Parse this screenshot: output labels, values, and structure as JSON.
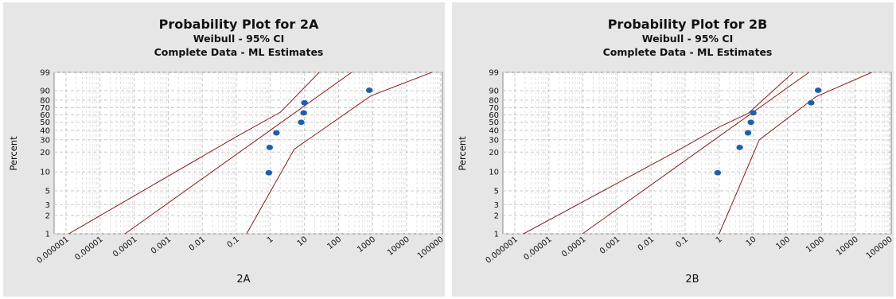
{
  "charts": [
    {
      "title": "Probability Plot for 2A",
      "subtitle1": "Weibull - 95% CI",
      "subtitle2": "Complete Data - ML Estimates",
      "ylabel": "Percent",
      "xlabel": "2A"
    },
    {
      "title": "Probability Plot for 2B",
      "subtitle1": "Weibull - 95% CI",
      "subtitle2": "Complete Data - ML Estimates",
      "ylabel": "Percent",
      "xlabel": "2B"
    }
  ],
  "colors": {
    "panel_bg": "#e6e6e6",
    "plot_bg": "#ffffff",
    "grid": "#c8c8c8",
    "fit_line": "#8b1a1a",
    "points": "#1f5fa8"
  },
  "chart_data": [
    {
      "type": "scatter",
      "title": "Probability Plot for 2A",
      "xlabel": "2A",
      "ylabel": "Percent",
      "x_scale": "log",
      "y_scale": "weibull-probability",
      "x_ticks": [
        "0.000001",
        "0.00001",
        "0.0001",
        "0.001",
        "0.01",
        "0.1",
        "1",
        "10",
        "100",
        "1000",
        "10000",
        "100000"
      ],
      "y_ticks": [
        1,
        2,
        3,
        5,
        10,
        20,
        30,
        40,
        50,
        60,
        70,
        80,
        90,
        99
      ],
      "points": [
        {
          "x": 0.9,
          "y": 9.7
        },
        {
          "x": 0.95,
          "y": 23.4
        },
        {
          "x": 1.5,
          "y": 37.1
        },
        {
          "x": 8,
          "y": 50
        },
        {
          "x": 9.5,
          "y": 62.9
        },
        {
          "x": 10,
          "y": 76.6
        },
        {
          "x": 800,
          "y": 90.3
        }
      ],
      "fit": {
        "scale": 5.3,
        "shape": 0.4
      },
      "ci_upper": [
        {
          "x": 1.2e-06,
          "y": 1
        },
        {
          "x": 0.1,
          "y": 33
        },
        {
          "x": 2,
          "y": 64
        },
        {
          "x": 27,
          "y": 99
        }
      ],
      "ci_lower": [
        {
          "x": 0.2,
          "y": 1
        },
        {
          "x": 5,
          "y": 22
        },
        {
          "x": 900,
          "y": 85
        },
        {
          "x": 55000,
          "y": 99
        }
      ],
      "grid": true
    },
    {
      "type": "scatter",
      "title": "Probability Plot for 2B",
      "xlabel": "2B",
      "ylabel": "Percent",
      "x_scale": "log",
      "y_scale": "weibull-probability",
      "x_ticks": [
        "0.000001",
        "0.00001",
        "0.0001",
        "0.001",
        "0.01",
        "0.1",
        "1",
        "10",
        "100",
        "1000",
        "10000",
        "100000"
      ],
      "y_ticks": [
        1,
        2,
        3,
        5,
        10,
        20,
        30,
        40,
        50,
        60,
        70,
        80,
        90,
        99
      ],
      "points": [
        {
          "x": 0.9,
          "y": 9.7
        },
        {
          "x": 4,
          "y": 23.4
        },
        {
          "x": 7,
          "y": 37.1
        },
        {
          "x": 8.5,
          "y": 50
        },
        {
          "x": 10,
          "y": 62.9
        },
        {
          "x": 500,
          "y": 76.6
        },
        {
          "x": 800,
          "y": 90.3
        }
      ],
      "fit": {
        "scale": 9.5,
        "shape": 0.4
      },
      "ci_upper": [
        {
          "x": 1.8e-06,
          "y": 1
        },
        {
          "x": 0.05,
          "y": 20
        },
        {
          "x": 1,
          "y": 44
        },
        {
          "x": 7,
          "y": 62
        },
        {
          "x": 150,
          "y": 99
        }
      ],
      "ci_lower": [
        {
          "x": 1,
          "y": 1
        },
        {
          "x": 15,
          "y": 30
        },
        {
          "x": 700,
          "y": 84
        },
        {
          "x": 30000,
          "y": 99
        }
      ],
      "grid": true
    }
  ]
}
